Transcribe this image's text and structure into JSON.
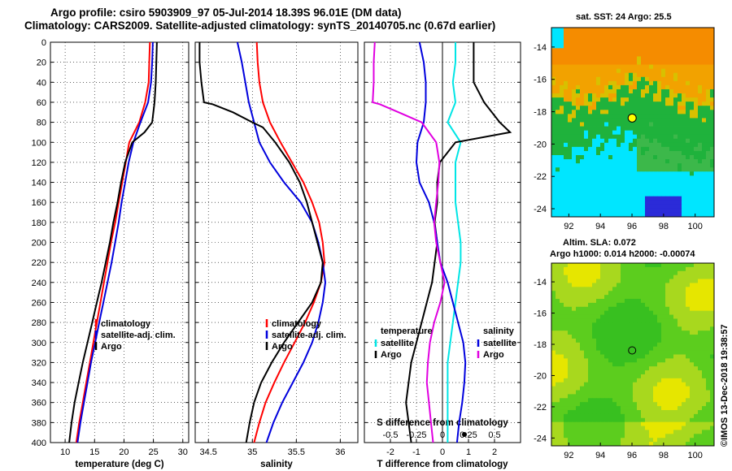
{
  "title_line1": "Argo profile: csiro 5903909_97 05-Jul-2014 18.39S 96.01E (DM data)",
  "title_line2": "Climatology: CARS2009. Satellite-adjusted climatology: synTS_20140705.nc (0.67d earlier)",
  "credit": "©IMOS 13-Dec-2018 19:38:57",
  "depth_ticks": [
    "0",
    "20",
    "40",
    "60",
    "80",
    "100",
    "120",
    "140",
    "160",
    "180",
    "200",
    "220",
    "240",
    "260",
    "280",
    "300",
    "320",
    "340",
    "360",
    "380",
    "400"
  ],
  "colors": {
    "climatology": "#ff0000",
    "satellite": "#0000dd",
    "argo": "#000000",
    "temp_diff": "#00e5e5",
    "sal_diff": "#e000e0"
  },
  "chart_data": [
    {
      "type": "line",
      "xlabel": "temperature (deg C)",
      "xlim": [
        7.5,
        31
      ],
      "xticks": [
        "10",
        "15",
        "20",
        "25",
        "30"
      ],
      "ylim": [
        0,
        400
      ],
      "legend": [
        "climatology",
        "satellite-adj. clim.",
        "Argo"
      ],
      "series": [
        {
          "name": "climatology",
          "depth": [
            0,
            20,
            40,
            60,
            80,
            100,
            120,
            140,
            160,
            180,
            200,
            220,
            240,
            260,
            280,
            300,
            320,
            340,
            360,
            380,
            400
          ],
          "values": [
            24.4,
            24.3,
            24.2,
            23.6,
            22.6,
            20.9,
            20.3,
            19.7,
            19.1,
            18.5,
            17.8,
            17.2,
            16.6,
            16.0,
            15.4,
            14.8,
            14.2,
            13.6,
            13.0,
            12.4,
            11.9
          ]
        },
        {
          "name": "satellite-adj. clim.",
          "depth": [
            0,
            20,
            40,
            60,
            80,
            100,
            120,
            140,
            160,
            180,
            200,
            220,
            240,
            260,
            280,
            300,
            320,
            340,
            360,
            380,
            400
          ],
          "values": [
            24.9,
            24.8,
            24.6,
            24.1,
            22.8,
            21.6,
            20.8,
            20.2,
            19.6,
            19.1,
            18.5,
            17.9,
            17.2,
            16.5,
            15.8,
            15.1,
            14.4,
            13.8,
            13.2,
            12.6,
            12.1
          ]
        },
        {
          "name": "Argo",
          "depth": [
            0,
            20,
            40,
            60,
            80,
            90,
            100,
            120,
            140,
            160,
            180,
            200,
            220,
            240,
            260,
            280,
            300,
            320,
            340,
            360,
            380,
            400
          ],
          "values": [
            25.6,
            25.5,
            25.4,
            25.2,
            24.8,
            23.5,
            21.4,
            20.2,
            19.5,
            18.9,
            18.2,
            17.6,
            16.9,
            16.2,
            15.4,
            14.6,
            13.8,
            13.0,
            12.3,
            11.6,
            11.1,
            10.7
          ]
        }
      ]
    },
    {
      "type": "line",
      "xlabel": "salinity",
      "xlim": [
        34.35,
        36.2
      ],
      "xticks": [
        "34.5",
        "35",
        "35.5",
        "36"
      ],
      "ylim": [
        0,
        400
      ],
      "legend": [
        "climatology",
        "satellite-adj. clim.",
        "Argo"
      ],
      "series": [
        {
          "name": "climatology",
          "depth": [
            0,
            20,
            40,
            60,
            80,
            100,
            120,
            140,
            160,
            180,
            200,
            220,
            240,
            260,
            280,
            300,
            320,
            340,
            360,
            380,
            400
          ],
          "values": [
            35.05,
            35.06,
            35.08,
            35.12,
            35.2,
            35.32,
            35.45,
            35.58,
            35.68,
            35.76,
            35.8,
            35.82,
            35.78,
            35.7,
            35.6,
            35.48,
            35.36,
            35.25,
            35.15,
            35.08,
            35.02
          ]
        },
        {
          "name": "satellite-adj. clim.",
          "depth": [
            0,
            20,
            40,
            60,
            80,
            100,
            120,
            140,
            160,
            180,
            200,
            220,
            240,
            260,
            280,
            300,
            320,
            340,
            360,
            380,
            400
          ],
          "values": [
            34.83,
            34.88,
            34.92,
            34.96,
            35.02,
            35.08,
            35.2,
            35.36,
            35.55,
            35.68,
            35.75,
            35.8,
            35.83,
            35.8,
            35.75,
            35.68,
            35.58,
            35.46,
            35.34,
            35.24,
            35.16
          ]
        },
        {
          "name": "Argo",
          "depth": [
            0,
            20,
            40,
            60,
            62,
            70,
            80,
            85,
            100,
            120,
            140,
            160,
            180,
            200,
            220,
            240,
            260,
            280,
            300,
            320,
            340,
            360,
            380,
            400
          ],
          "values": [
            34.4,
            34.4,
            34.42,
            34.45,
            34.55,
            34.78,
            35.0,
            35.12,
            35.26,
            35.42,
            35.54,
            35.62,
            35.68,
            35.74,
            35.8,
            35.78,
            35.68,
            35.52,
            35.36,
            35.22,
            35.1,
            35.02,
            34.97,
            34.93
          ]
        }
      ]
    },
    {
      "type": "line",
      "xlabel": "T difference from climatology",
      "xlabel_top": "S difference from climatology",
      "xlim": [
        -3,
        3
      ],
      "xticks": [
        "-2",
        "-1",
        "0",
        "1",
        "2"
      ],
      "sxticks": [
        "-0.5",
        "-0.25",
        "0",
        "0.25",
        "0.5"
      ],
      "sxlim": [
        -0.75,
        0.75
      ],
      "ylim": [
        0,
        400
      ],
      "legend_left": {
        "title": "temperature",
        "items": [
          "satellite",
          "Argo"
        ]
      },
      "legend_right": {
        "title": "salinity",
        "items": [
          "satellite",
          "Argo"
        ]
      },
      "series": [
        {
          "name": "temperature satellite",
          "axis": "T",
          "depth": [
            0,
            20,
            40,
            60,
            80,
            100,
            120,
            140,
            160,
            180,
            200,
            220,
            240,
            260,
            280,
            300,
            320,
            340,
            360,
            380,
            400
          ],
          "values": [
            0.5,
            0.5,
            0.4,
            0.5,
            0.2,
            0.7,
            0.5,
            0.5,
            0.5,
            0.6,
            0.7,
            0.7,
            0.6,
            0.5,
            0.4,
            0.3,
            0.2,
            0.2,
            0.2,
            0.2,
            0.2
          ]
        },
        {
          "name": "temperature Argo",
          "axis": "T",
          "depth": [
            0,
            20,
            40,
            60,
            80,
            90,
            100,
            120,
            140,
            160,
            180,
            200,
            220,
            240,
            260,
            280,
            300,
            320,
            340,
            360,
            380,
            400
          ],
          "values": [
            1.2,
            1.2,
            1.2,
            1.6,
            2.2,
            2.6,
            0.5,
            -0.1,
            -0.2,
            -0.2,
            -0.3,
            -0.2,
            -0.3,
            -0.4,
            -0.6,
            -0.8,
            -1.0,
            -1.2,
            -1.3,
            -1.4,
            -1.3,
            -1.2
          ]
        },
        {
          "name": "salinity satellite",
          "axis": "S",
          "depth": [
            0,
            20,
            40,
            60,
            80,
            100,
            120,
            140,
            160,
            180,
            200,
            220,
            240,
            260,
            280,
            300,
            320,
            340,
            360,
            380,
            400
          ],
          "values": [
            -0.22,
            -0.18,
            -0.16,
            -0.16,
            -0.18,
            -0.24,
            -0.25,
            -0.22,
            -0.13,
            -0.08,
            -0.05,
            -0.02,
            0.05,
            0.1,
            0.15,
            0.2,
            0.22,
            0.21,
            0.19,
            0.16,
            0.14
          ]
        },
        {
          "name": "salinity Argo",
          "axis": "S",
          "depth": [
            0,
            20,
            40,
            60,
            62,
            70,
            80,
            100,
            120,
            140,
            160,
            180,
            200,
            220,
            240,
            260,
            280,
            300,
            320,
            340,
            360,
            380,
            400
          ],
          "values": [
            -0.65,
            -0.66,
            -0.66,
            -0.67,
            -0.6,
            -0.42,
            -0.2,
            -0.06,
            -0.03,
            -0.04,
            -0.06,
            -0.08,
            -0.06,
            -0.02,
            0.02,
            -0.02,
            -0.08,
            -0.12,
            -0.14,
            -0.15,
            -0.13,
            -0.11,
            -0.09
          ]
        }
      ]
    },
    {
      "type": "heatmap",
      "title": "sat. SST: 24 Argo: 25.5",
      "xticks": [
        "92",
        "94",
        "96",
        "98",
        "100"
      ],
      "yticks": [
        "-14",
        "-16",
        "-18",
        "-20",
        "-22",
        "-24"
      ],
      "xlim": [
        90.9,
        101.2
      ],
      "ylim": [
        -24.5,
        -12.8
      ],
      "marker": {
        "lon": 96.01,
        "lat": -18.39
      }
    },
    {
      "type": "heatmap",
      "title": "Altim. SLA: 0.072",
      "subtitle": "Argo h1000: 0.014 h2000: -0.00074",
      "xticks": [
        "92",
        "94",
        "96",
        "98",
        "100"
      ],
      "yticks": [
        "-14",
        "-16",
        "-18",
        "-20",
        "-22",
        "-24"
      ],
      "xlim": [
        90.9,
        101.2
      ],
      "ylim": [
        -24.5,
        -12.8
      ],
      "marker": {
        "lon": 96.01,
        "lat": -18.39
      }
    }
  ]
}
